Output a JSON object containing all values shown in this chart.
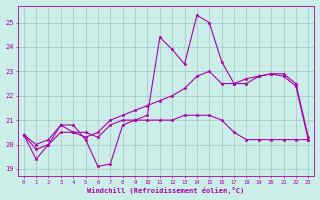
{
  "xlabel": "Windchill (Refroidissement éolien,°C)",
  "xlim": [
    -0.5,
    23.5
  ],
  "ylim": [
    18.7,
    25.7
  ],
  "yticks": [
    19,
    20,
    21,
    22,
    23,
    24,
    25
  ],
  "xticks": [
    0,
    1,
    2,
    3,
    4,
    5,
    6,
    7,
    8,
    9,
    10,
    11,
    12,
    13,
    14,
    15,
    16,
    17,
    18,
    19,
    20,
    21,
    22,
    23
  ],
  "bg_color": "#cceee8",
  "grid_color": "#aacccc",
  "line_color": "#aa00aa",
  "line1_x": [
    0,
    1,
    2,
    3,
    4,
    5,
    6,
    7,
    8,
    9,
    10,
    11,
    12,
    13,
    14,
    15,
    16,
    17,
    18,
    19,
    20,
    21,
    22,
    23
  ],
  "line1_y": [
    20.4,
    19.4,
    20.0,
    20.8,
    20.8,
    20.2,
    19.1,
    19.2,
    20.8,
    21.0,
    21.2,
    24.4,
    23.9,
    23.3,
    25.3,
    25.0,
    23.4,
    22.5,
    22.5,
    22.8,
    22.9,
    22.8,
    22.4,
    20.2
  ],
  "line2_x": [
    0,
    1,
    2,
    3,
    4,
    5,
    6,
    7,
    8,
    9,
    10,
    11,
    12,
    13,
    14,
    15,
    16,
    17,
    18,
    19,
    20,
    21,
    22,
    23
  ],
  "line2_y": [
    20.4,
    20.0,
    20.2,
    20.8,
    20.5,
    20.5,
    20.3,
    20.8,
    21.0,
    21.0,
    21.0,
    21.0,
    21.0,
    21.2,
    21.2,
    21.2,
    21.0,
    20.5,
    20.2,
    20.2,
    20.2,
    20.2,
    20.2,
    20.2
  ],
  "line3_x": [
    0,
    1,
    2,
    3,
    4,
    5,
    6,
    7,
    8,
    9,
    10,
    11,
    12,
    13,
    14,
    15,
    16,
    17,
    18,
    19,
    20,
    21,
    22,
    23
  ],
  "line3_y": [
    20.4,
    19.8,
    20.0,
    20.5,
    20.5,
    20.3,
    20.5,
    21.0,
    21.2,
    21.4,
    21.6,
    21.8,
    22.0,
    22.3,
    22.8,
    23.0,
    22.5,
    22.5,
    22.7,
    22.8,
    22.9,
    22.9,
    22.5,
    20.3
  ]
}
